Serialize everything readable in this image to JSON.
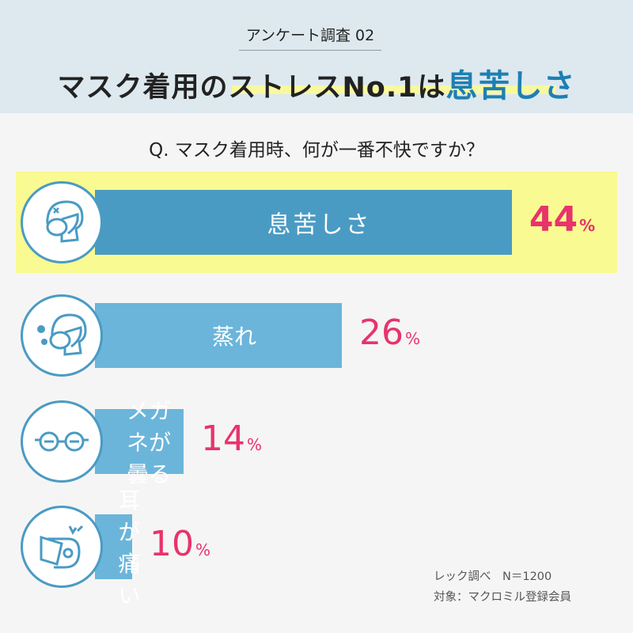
{
  "header": {
    "subtitle": "アンケート調査 02",
    "title_prefix": "マスク着用のストレスNo.1は",
    "title_emphasis": "息苦しさ"
  },
  "question": "Q. マスク着用時、何が一番不快ですか？",
  "chart_data": {
    "type": "bar",
    "orientation": "horizontal",
    "categories": [
      "息苦しさ",
      "蒸れ",
      "メガネが曇る",
      "耳が痛い"
    ],
    "values": [
      44,
      26,
      14,
      10
    ],
    "unit": "%",
    "icons": [
      "suffocating-mask-face-icon",
      "steamy-mask-face-icon",
      "foggy-glasses-icon",
      "ear-pain-icon"
    ],
    "colors": {
      "top_bar": "#4a9bc4",
      "bar": "#6bb5da",
      "highlight": "#f9fa91",
      "value": "#e8336b"
    }
  },
  "labels": [
    {
      "name": "息苦しさ",
      "value": "44",
      "unit": "%"
    },
    {
      "name": "蒸れ",
      "value": "26",
      "unit": "%"
    },
    {
      "name": "メガネが曇る",
      "value": "14",
      "unit": "%"
    },
    {
      "name": "耳が痛い",
      "value": "10",
      "unit": "%"
    }
  ],
  "footnote": {
    "source": "レック調べ　N＝1200",
    "target": "対象：マクロミル登録会員"
  }
}
